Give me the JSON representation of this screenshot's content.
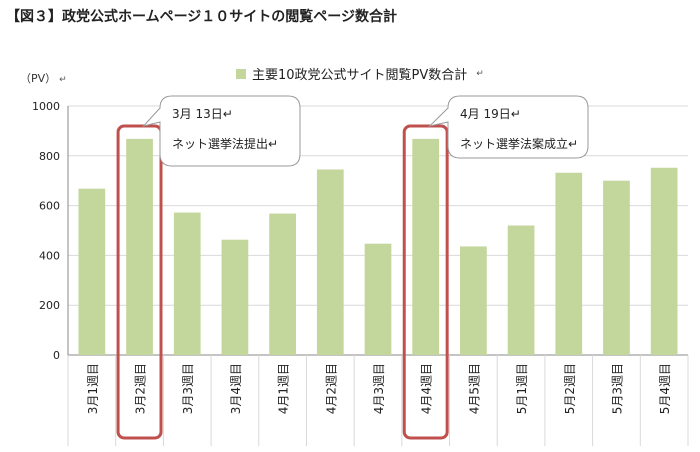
{
  "figure_title": "【図３】政党公式ホームページ１０サイトの閲覧ページ数合計",
  "unit_label": "（PV）",
  "return_mark": "↵",
  "chart_data": {
    "type": "bar",
    "categories": [
      "3月1週目",
      "3月2週目",
      "3月3週目",
      "3月4週目",
      "4月1週目",
      "4月2週目",
      "4月3週目",
      "4月4週目",
      "4月5週目",
      "5月1週目",
      "5月2週目",
      "5月3週目",
      "5月4週目"
    ],
    "series": [
      {
        "name": "主要10政党公式サイト閲覧PV数合計",
        "values": [
          668,
          868,
          572,
          463,
          568,
          745,
          447,
          868,
          436,
          520,
          732,
          700,
          752
        ]
      }
    ],
    "ylim": [
      0,
      1000
    ],
    "yticks": [
      0,
      200,
      400,
      600,
      800,
      1000
    ],
    "color": "#c3d69b",
    "highlight_color": "#c0504d",
    "highlighted_categories": [
      "3月2週目",
      "4月4週目"
    ],
    "annotations": [
      {
        "category": "3月2週目",
        "date": "3月 13日",
        "text": "ネット選挙法提出"
      },
      {
        "category": "4月4週目",
        "date": "4月 19日",
        "text": "ネット選挙法案成立"
      }
    ]
  }
}
